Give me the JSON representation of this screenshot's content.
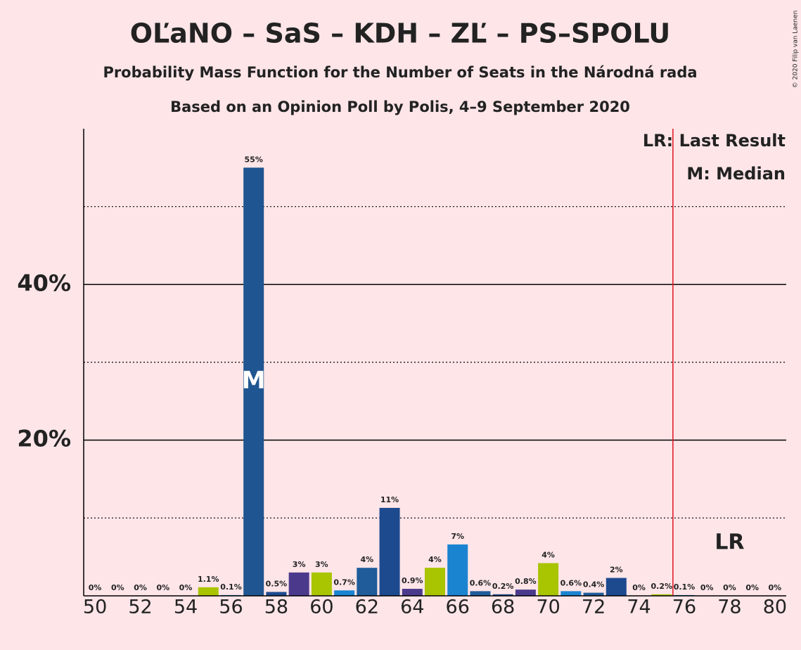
{
  "chart_data": {
    "type": "bar",
    "title": "OĽaNO – SaS – KDH – ZĽ – PS–SPOLU",
    "subtitle": "Probability Mass Function for the Number of Seats in the Národná rada",
    "subtitle2": "Based on an Opinion Poll by Polis, 4–9 September 2020",
    "x": [
      50,
      51,
      52,
      53,
      54,
      55,
      56,
      57,
      58,
      59,
      60,
      61,
      62,
      63,
      64,
      65,
      66,
      67,
      68,
      69,
      70,
      71,
      72,
      73,
      74,
      75,
      76,
      77,
      78,
      79,
      80
    ],
    "values": [
      0,
      0,
      0,
      0,
      0,
      1.1,
      0.1,
      55,
      0.5,
      3,
      3,
      0.7,
      3.6,
      11.3,
      0.9,
      3.6,
      6.6,
      0.6,
      0.2,
      0.8,
      4.2,
      0.6,
      0.4,
      2.3,
      0,
      0.2,
      0.1,
      0,
      0,
      0,
      0
    ],
    "value_labels": [
      "0%",
      "0%",
      "0%",
      "0%",
      "0%",
      "1.1%",
      "0.1%",
      "55%",
      "0.5%",
      "3%",
      "3%",
      "0.7%",
      "4%",
      "11%",
      "0.9%",
      "4%",
      "7%",
      "0.6%",
      "0.2%",
      "0.8%",
      "4%",
      "0.6%",
      "0.4%",
      "2%",
      "0%",
      "0.2%",
      "0.1%",
      "0%",
      "0%",
      "0%",
      "0%"
    ],
    "colors": [
      "#1f5c99",
      "#1f5c99",
      "#1f5c99",
      "#1f5c99",
      "#1f5c99",
      "#a9c400",
      "#1a84d1",
      "#1f5590",
      "#1d4a8f",
      "#4b3a8c",
      "#a9c400",
      "#1a84d1",
      "#1f5c99",
      "#1d4a8f",
      "#4b3a8c",
      "#a9c400",
      "#1a84d1",
      "#1f5c99",
      "#1d4a8f",
      "#4b3a8c",
      "#a9c400",
      "#1a84d1",
      "#1f5c99",
      "#1d4a8f",
      "#4b3a8c",
      "#a9c400",
      "#1a84d1",
      "#1f5c99",
      "#1d4a8f",
      "#4b3a8c",
      "#a9c400"
    ],
    "xlim": [
      49.5,
      80.5
    ],
    "xticks": [
      50,
      52,
      54,
      56,
      58,
      60,
      62,
      64,
      66,
      68,
      70,
      72,
      74,
      76,
      78,
      80
    ],
    "ylim": [
      0,
      60
    ],
    "yticks": [
      {
        "value": 20,
        "label": "20%"
      },
      {
        "value": 40,
        "label": "40%"
      }
    ],
    "minor_yticks": [
      10,
      30,
      50
    ],
    "median": 57,
    "median_label": "M",
    "last_result_line": 75.5,
    "last_result_label": "LR",
    "legend": [
      "LR: Last Result",
      "M: Median"
    ],
    "lr_color": "#e0141e",
    "copyright": "© 2020 Filip van Laenen"
  }
}
